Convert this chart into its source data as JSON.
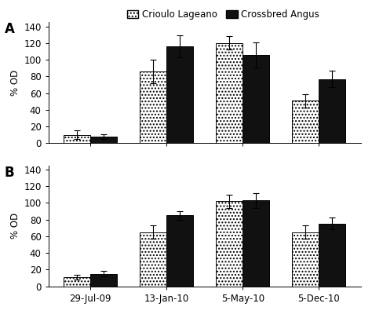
{
  "panel_A": {
    "categories": [
      "29-Jul-09",
      "13-Jan-10",
      "5-May-10",
      "5-Dec-10"
    ],
    "crioulo": [
      10,
      86,
      120,
      51
    ],
    "crossbred": [
      8,
      116,
      106,
      77
    ],
    "crioulo_err": [
      5,
      14,
      8,
      8
    ],
    "crossbred_err": [
      3,
      13,
      15,
      10
    ],
    "ylabel": "% OD",
    "ylim": [
      0,
      145
    ],
    "yticks": [
      0,
      20,
      40,
      60,
      80,
      100,
      120,
      140
    ],
    "label": "A"
  },
  "panel_B": {
    "categories": [
      "29-Jul-09",
      "13-Jan-10",
      "5-May-10",
      "5-Dec-10"
    ],
    "crioulo": [
      11,
      65,
      102,
      65
    ],
    "crossbred": [
      15,
      85,
      103,
      75
    ],
    "crioulo_err": [
      3,
      8,
      8,
      8
    ],
    "crossbred_err": [
      3,
      5,
      9,
      7
    ],
    "ylabel": "% OD",
    "ylim": [
      0,
      145
    ],
    "yticks": [
      0,
      20,
      40,
      60,
      80,
      100,
      120,
      140
    ],
    "label": "B"
  },
  "legend_labels": [
    "Crioulo Lageano",
    "Crossbred Angus"
  ],
  "bar_width": 0.35,
  "crioulo_color": "white",
  "crossbred_color": "#111111",
  "hatch_crioulo": "....",
  "background_color": "#ffffff",
  "font_size": 8.5
}
